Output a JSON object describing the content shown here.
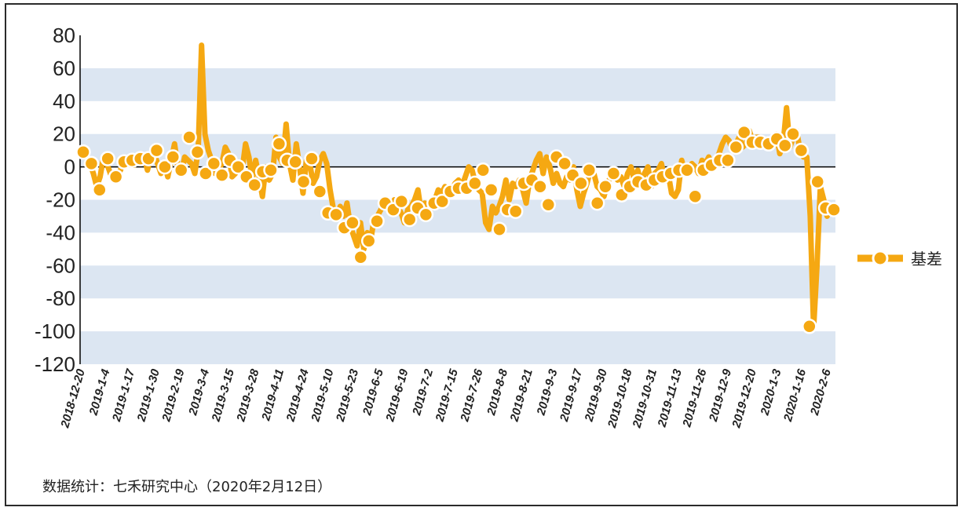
{
  "source_note": "数据统计：七禾研究中心（2020年2月12日）",
  "chart_data": {
    "type": "line",
    "series_name": "基差",
    "line_color": "#F5A812",
    "marker_fill": "#FFFFFF",
    "marker_stroke": "#F5A812",
    "band_color": "#DCE6F2",
    "zero_line_color": "#000000",
    "ylim": [
      -120,
      80
    ],
    "yticks": [
      80,
      60,
      40,
      20,
      0,
      -20,
      -40,
      -60,
      -80,
      -100,
      -120
    ],
    "y_tick_labels": [
      "80",
      "60",
      "40",
      "20",
      "0",
      "-20",
      "-40",
      "-60",
      "-80",
      "-100",
      "-120"
    ],
    "legend_position": "right",
    "xlabels": [
      "2018-12-20",
      "2019-1-4",
      "2019-1-17",
      "2019-1-30",
      "2019-2-19",
      "2019-3-4",
      "2019-3-15",
      "2019-3-28",
      "2019-4-11",
      "2019-4-24",
      "2019-5-10",
      "2019-5-23",
      "2019-6-5",
      "2019-6-19",
      "2019-7-2",
      "2019-7-15",
      "2019-7-26",
      "2019-8-8",
      "2019-8-21",
      "2019-9-3",
      "2019-9-17",
      "2019-9-30",
      "2019-10-18",
      "2019-10-31",
      "2019-11-13",
      "2019-11-26",
      "2019-12-9",
      "2019-12-20",
      "2020-1-3",
      "2020-1-16",
      "2020-2-6"
    ],
    "line_values": [
      10,
      6,
      2,
      -4,
      -12,
      -6,
      6,
      2,
      -4,
      -8,
      -6,
      -2,
      4,
      2,
      4,
      1,
      4,
      2,
      6,
      -2,
      6,
      8,
      2,
      -4,
      2,
      -6,
      4,
      14,
      0,
      -4,
      6,
      4,
      2,
      -4,
      10,
      74,
      20,
      10,
      4,
      -4,
      -2,
      2,
      12,
      8,
      -6,
      -4,
      2,
      -2,
      14,
      6,
      -8,
      4,
      -6,
      -18,
      0,
      -8,
      -4,
      18,
      6,
      2,
      26,
      2,
      -8,
      14,
      0,
      -16,
      4,
      2,
      -10,
      -6,
      4,
      8,
      2,
      -14,
      -26,
      -30,
      -24,
      -30,
      -22,
      -36,
      -42,
      -48,
      -34,
      -50,
      -40,
      -45,
      -32,
      -30,
      -26,
      -22,
      -24,
      -26,
      -20,
      -24,
      -28,
      -34,
      -26,
      -24,
      -20,
      -14,
      -28,
      -22,
      -30,
      -24,
      -20,
      -14,
      -16,
      -12,
      -16,
      -14,
      -10,
      -8,
      -12,
      -6,
      0,
      -2,
      -10,
      -14,
      -16,
      -34,
      -38,
      -24,
      -28,
      -24,
      -18,
      -8,
      -20,
      -10,
      -12,
      -8,
      -14,
      -22,
      -8,
      -2,
      4,
      8,
      -4,
      6,
      0,
      -10,
      -4,
      -10,
      -12,
      -6,
      -8,
      0,
      -14,
      -24,
      -16,
      -10,
      -2,
      -4,
      -12,
      -14,
      -18,
      -10,
      -6,
      -2,
      -8,
      -6,
      -12,
      -4,
      0,
      -8,
      -2,
      -10,
      -4,
      0,
      -12,
      -4,
      -2,
      2,
      -8,
      -4,
      -16,
      -18,
      -14,
      4,
      -4,
      -2,
      2,
      0,
      -4,
      4,
      2,
      6,
      0,
      4,
      8,
      14,
      18,
      16,
      10,
      14,
      18,
      12,
      14,
      22,
      16,
      18,
      18,
      14,
      12,
      16,
      14,
      20,
      8,
      14,
      36,
      12,
      18,
      22,
      10,
      6,
      6,
      -30,
      -98,
      -60,
      -12,
      -20,
      -30,
      -24,
      -26
    ],
    "marker_values": [
      9,
      2,
      -14,
      5,
      -6,
      3,
      4,
      5,
      5,
      10,
      0,
      6,
      -2,
      18,
      9,
      -4,
      2,
      -5,
      4,
      0,
      -6,
      -11,
      -3,
      -2,
      14,
      4,
      3,
      -9,
      5,
      -15,
      -28,
      -29,
      -37,
      -34,
      -55,
      -45,
      -33,
      -22,
      -26,
      -21,
      -32,
      -25,
      -29,
      -22,
      -21,
      -15,
      -13,
      -13,
      -10,
      -2,
      -14,
      -38,
      -26,
      -27,
      -10,
      -8,
      -12,
      -23,
      6,
      2,
      -5,
      -10,
      -2,
      -22,
      -12,
      -4,
      -17,
      -12,
      -9,
      -11,
      -8,
      -6,
      -4,
      -2,
      -2,
      -18,
      -2,
      1,
      4,
      4,
      12,
      21,
      15,
      15,
      14,
      17,
      13,
      20,
      10,
      -97,
      -9,
      -25,
      -26
    ]
  }
}
